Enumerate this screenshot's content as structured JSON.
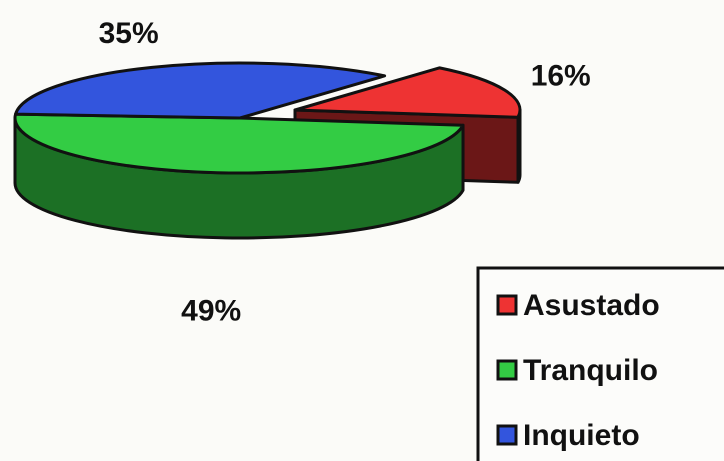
{
  "chart_data": {
    "type": "pie",
    "categories": [
      "Asustado",
      "Tranquilo",
      "Inquieto"
    ],
    "values": [
      16,
      49,
      35
    ],
    "value_labels": [
      "16%",
      "49%",
      "35%"
    ],
    "colors": [
      "#ee3333",
      "#33cc44",
      "#3355dd"
    ],
    "legend": "lower right",
    "three_d": true
  }
}
